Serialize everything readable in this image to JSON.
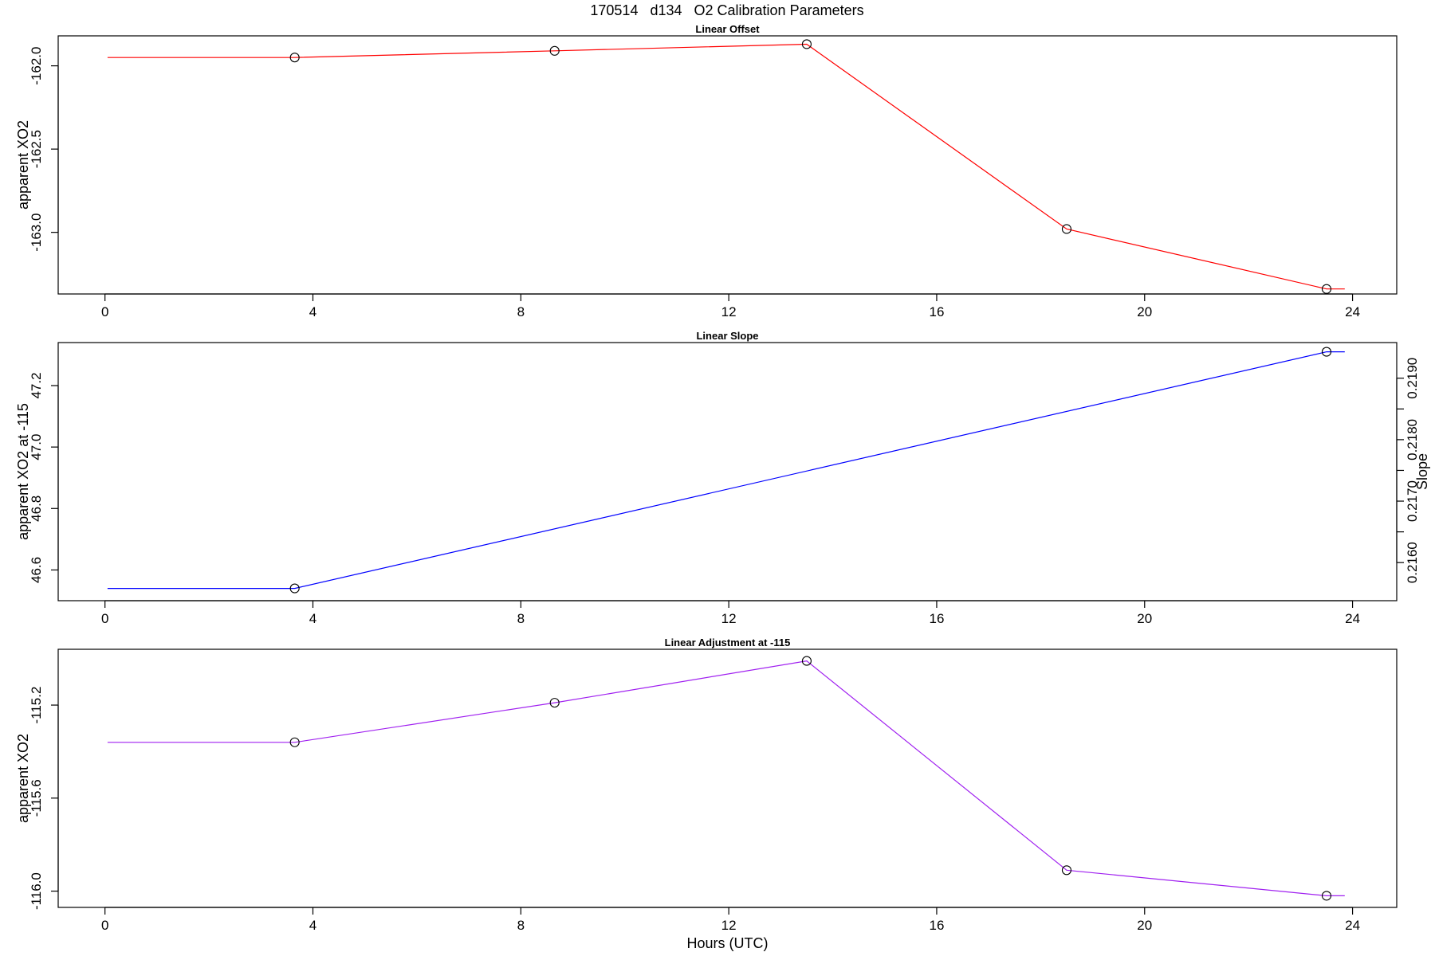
{
  "title": "170514   d134   O2 Calibration Parameters",
  "chart_data": [
    {
      "type": "line",
      "title": "Linear Offset",
      "xlabel": "",
      "ylabel": "apparent XO2",
      "color": "#ff0000",
      "xlim": [
        -0.9,
        24.85
      ],
      "ylim": [
        -163.37,
        -161.82
      ],
      "xticks": [
        0,
        4,
        8,
        12,
        16,
        20,
        24
      ],
      "yticks": [
        -162.0,
        -162.5,
        -163.0
      ],
      "yticklabels": [
        "-162.0",
        "-162.5",
        "-163.0"
      ],
      "line_x": [
        0.05,
        3.65,
        8.65,
        13.5,
        18.5,
        23.5,
        23.85
      ],
      "line_y": [
        -161.95,
        -161.95,
        -161.91,
        -161.87,
        -162.98,
        -163.34,
        -163.34
      ],
      "point_x": [
        3.65,
        8.65,
        13.5,
        18.5,
        23.5
      ],
      "point_y": [
        -161.95,
        -161.91,
        -161.87,
        -162.98,
        -163.34
      ]
    },
    {
      "type": "line",
      "title": "Linear Slope",
      "xlabel": "",
      "ylabel": "apparent XO2 at -115",
      "y2label": "Slope",
      "color": "#0000ff",
      "xlim": [
        -0.9,
        24.85
      ],
      "ylim": [
        46.5,
        47.34
      ],
      "xticks": [
        0,
        4,
        8,
        12,
        16,
        20,
        24
      ],
      "yticks": [
        46.6,
        46.8,
        47.0,
        47.2
      ],
      "yticklabels": [
        "46.6",
        "46.8",
        "47.0",
        "47.2"
      ],
      "y2ticks": [
        0.216,
        0.2165,
        0.217,
        0.2175,
        0.218,
        0.2185,
        0.219
      ],
      "y2ticklabels": [
        "0.2160",
        "",
        "0.2170",
        "",
        "0.2180",
        "",
        "0.2190"
      ],
      "y2_transform": {
        "slope_at_46_6": 0.21588,
        "slope_per_unit": 0.005
      },
      "line_x": [
        0.05,
        3.65,
        23.5,
        23.85
      ],
      "line_y": [
        46.54,
        46.54,
        47.31,
        47.31
      ],
      "point_x": [
        3.65,
        23.5
      ],
      "point_y": [
        46.54,
        47.31
      ]
    },
    {
      "type": "line",
      "title": "Linear Adjustment at -115",
      "xlabel": "Hours (UTC)",
      "ylabel": "apparent XO2",
      "color": "#a020f0",
      "xlim": [
        -0.9,
        24.85
      ],
      "ylim": [
        -116.07,
        -114.96
      ],
      "xticks": [
        0,
        4,
        8,
        12,
        16,
        20,
        24
      ],
      "yticks": [
        -115.2,
        -115.6,
        -116.0
      ],
      "yticklabels": [
        "-115.2",
        "-115.6",
        "-116.0"
      ],
      "line_x": [
        0.05,
        3.65,
        8.65,
        13.5,
        18.5,
        23.5,
        23.85
      ],
      "line_y": [
        -115.36,
        -115.36,
        -115.19,
        -115.01,
        -115.91,
        -116.02,
        -116.02
      ],
      "point_x": [
        3.65,
        8.65,
        13.5,
        18.5,
        23.5
      ],
      "point_y": [
        -115.36,
        -115.19,
        -115.01,
        -115.91,
        -116.02
      ]
    }
  ]
}
